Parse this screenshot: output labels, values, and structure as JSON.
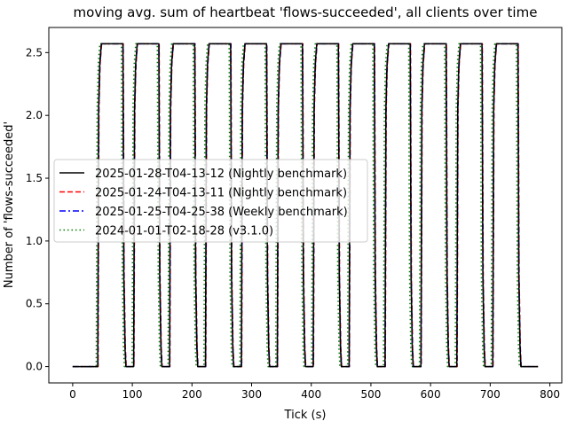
{
  "chart_data": {
    "type": "line",
    "title": "moving avg. sum of heartbeat 'flows-succeeded', all clients over time",
    "xlabel": "Tick (s)",
    "ylabel": "Number of 'flows-succeeded'",
    "xlim": [
      -40,
      820
    ],
    "ylim": [
      -0.13,
      2.7
    ],
    "xticks": [
      0,
      100,
      200,
      300,
      400,
      500,
      600,
      700,
      800
    ],
    "yticks": [
      0.0,
      0.5,
      1.0,
      1.5,
      2.0,
      2.5
    ],
    "xtick_labels": [
      "0",
      "100",
      "200",
      "300",
      "400",
      "500",
      "600",
      "700",
      "800"
    ],
    "ytick_labels": [
      "0.0",
      "0.5",
      "1.0",
      "1.5",
      "2.0",
      "2.5"
    ],
    "grid": false,
    "legend_position": "center-left",
    "pulse_profile": {
      "baseline": 0.0,
      "plateau": 2.57,
      "first_rise_at": 42,
      "period": 60.2,
      "cycles": 12,
      "low_duration": 18,
      "end_x": 780
    },
    "series": [
      {
        "name": "2025-01-28-T04-13-12 (Nightly benchmark)",
        "color": "#000000",
        "style": "solid",
        "offset": 0
      },
      {
        "name": "2025-01-24-T04-13-11 (Nightly benchmark)",
        "color": "#ff0000",
        "style": "dashed",
        "offset": 0.6
      },
      {
        "name": "2025-01-25-T04-25-38 (Weekly benchmark)",
        "color": "#0000ff",
        "style": "dashdot",
        "offset": 0.3
      },
      {
        "name": "2024-01-01-T02-18-28 (v3.1.0)",
        "color": "#008000",
        "style": "dotted",
        "offset": -2.5
      }
    ]
  }
}
